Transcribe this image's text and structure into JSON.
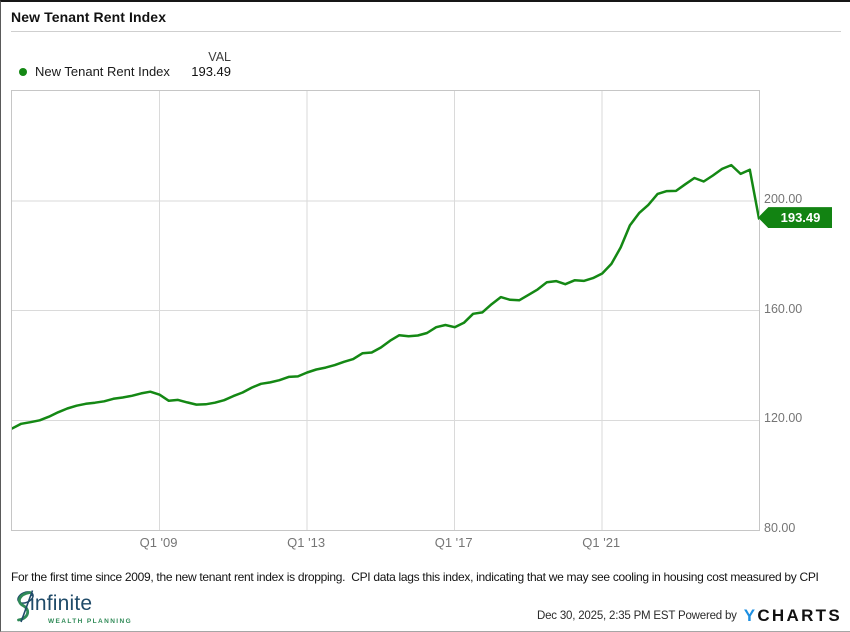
{
  "window": {
    "title": "New Tenant Rent Index"
  },
  "legend": {
    "series_label": "New Tenant Rent Index",
    "value_header": "VAL",
    "value": "193.49"
  },
  "chart_data": {
    "type": "line",
    "title": "New Tenant Rent Index",
    "xlabel": "",
    "ylabel": "",
    "x_start": "Q1 2005",
    "x_end": "Q2 2025",
    "frequency": "quarterly",
    "ylim": [
      80,
      240
    ],
    "grid": true,
    "legend_position": "top-left",
    "last_value_label": "193.49",
    "series": [
      {
        "name": "New Tenant Rent Index",
        "color": "#148814",
        "values": [
          117.0,
          118.7,
          119.3,
          120.0,
          121.3,
          122.9,
          124.3,
          125.3,
          126.0,
          126.4,
          126.9,
          127.8,
          128.3,
          128.9,
          129.8,
          130.4,
          129.3,
          127.1,
          127.4,
          126.5,
          125.7,
          125.8,
          126.4,
          127.3,
          128.8,
          130.1,
          131.9,
          133.3,
          133.8,
          134.6,
          135.8,
          136.0,
          137.4,
          138.5,
          139.2,
          140.1,
          141.3,
          142.3,
          144.4,
          144.7,
          146.5,
          149.0,
          151.0,
          150.6,
          150.9,
          151.8,
          153.9,
          154.7,
          153.9,
          155.5,
          158.8,
          159.3,
          162.3,
          164.9,
          163.9,
          163.7,
          165.7,
          167.7,
          170.3,
          170.7,
          169.6,
          171.0,
          170.8,
          171.8,
          173.5,
          177.0,
          183.0,
          191.0,
          195.5,
          198.5,
          202.5,
          203.5,
          203.6,
          206.0,
          208.3,
          207.0,
          209.2,
          211.6,
          213.0,
          209.8,
          211.3,
          193.49
        ]
      }
    ],
    "x_ticks": [
      {
        "label": "Q1 '09",
        "index": 16
      },
      {
        "label": "Q1 '13",
        "index": 32
      },
      {
        "label": "Q1 '17",
        "index": 48
      },
      {
        "label": "Q1 '21",
        "index": 64
      }
    ],
    "y_ticks": [
      {
        "label": "200.00",
        "value": 200
      },
      {
        "label": "160.00",
        "value": 160
      },
      {
        "label": "120.00",
        "value": 120
      },
      {
        "label": "80.00",
        "value": 80
      }
    ]
  },
  "note": "For the first time since 2009, the new tenant rent index is dropping.  CPI data lags this index, indicating that we may see cooling in housing cost measured by CPI",
  "footer": {
    "logo_name": "infinite",
    "logo_subtitle": "WEALTH PLANNING",
    "timestamp": "Dec 30, 2025, 2:35 PM EST Powered by",
    "brand_y": "Y",
    "brand_rest": "CHARTS"
  },
  "colors": {
    "line_green": "#148814",
    "badge_green": "#128312",
    "grid_gray": "#dadada",
    "plot_border": "#c6c6c6",
    "tick_gray": "#757575",
    "ycharts_blue": "#1d8fe1",
    "logo_navy": "#1f4a68",
    "logo_green": "#2f8a57"
  }
}
